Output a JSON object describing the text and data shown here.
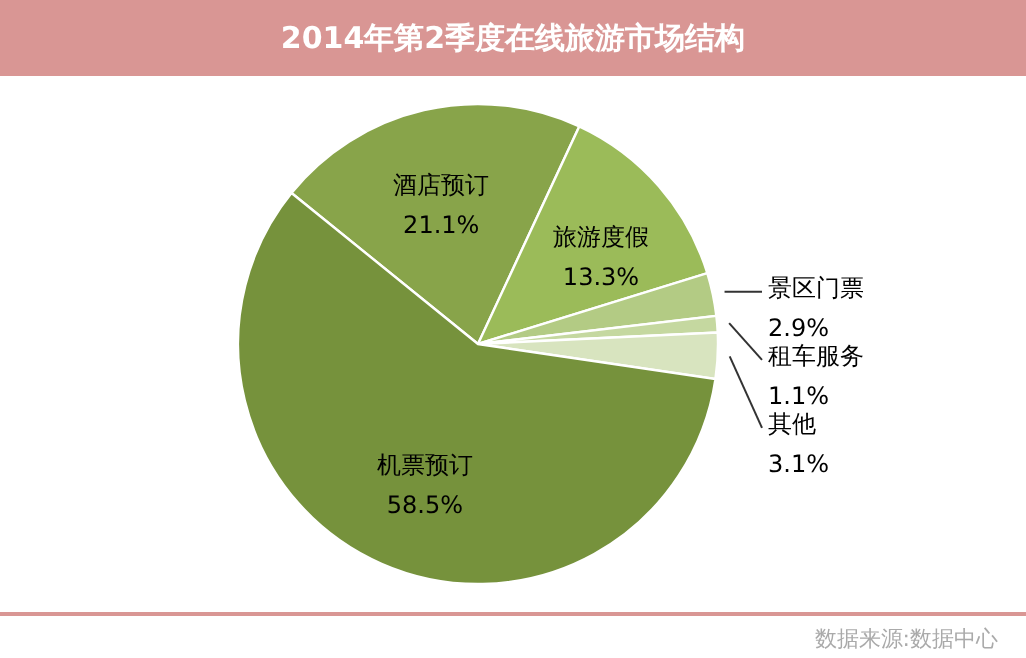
{
  "chart_data": {
    "type": "pie",
    "title": "2014年第2季度在线旅游市场结构",
    "categories": [
      "酒店预订",
      "旅游度假",
      "景区门票",
      "租车服务",
      "其他",
      "机票预订"
    ],
    "values": [
      21.1,
      13.3,
      2.9,
      1.1,
      3.1,
      58.5
    ],
    "colors": [
      "#88a44a",
      "#9bbb59",
      "#b3cb84",
      "#c5d8a0",
      "#d8e4bf",
      "#76923c"
    ],
    "value_labels": [
      "21.1%",
      "13.3%",
      "2.9%",
      "1.1%",
      "3.1%",
      "58.5%"
    ],
    "annotations": [
      "数据来源:数据中心"
    ]
  }
}
